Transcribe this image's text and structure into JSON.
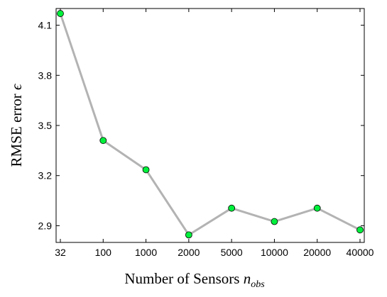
{
  "chart_data": {
    "type": "line",
    "xlabel": "Number of Sensors",
    "xlabel_sub_main": "n",
    "xlabel_sub": "obs",
    "ylabel": "RMSE error",
    "ylabel_symbol": "ϵ",
    "categories": [
      "32",
      "100",
      "1000",
      "2000",
      "5000",
      "10000",
      "20000",
      "40000"
    ],
    "series": [
      {
        "values": [
          4.17,
          3.41,
          3.235,
          2.845,
          3.005,
          2.925,
          3.005,
          2.875
        ]
      }
    ],
    "yticks": [
      "2.9",
      "3.2",
      "3.5",
      "3.8",
      "4.1"
    ],
    "ylim": [
      2.8,
      4.2
    ],
    "grid": false,
    "colors": {
      "line": "#b3b3b3",
      "marker_fill": "#00f03c",
      "marker_stroke": "#000000"
    }
  }
}
